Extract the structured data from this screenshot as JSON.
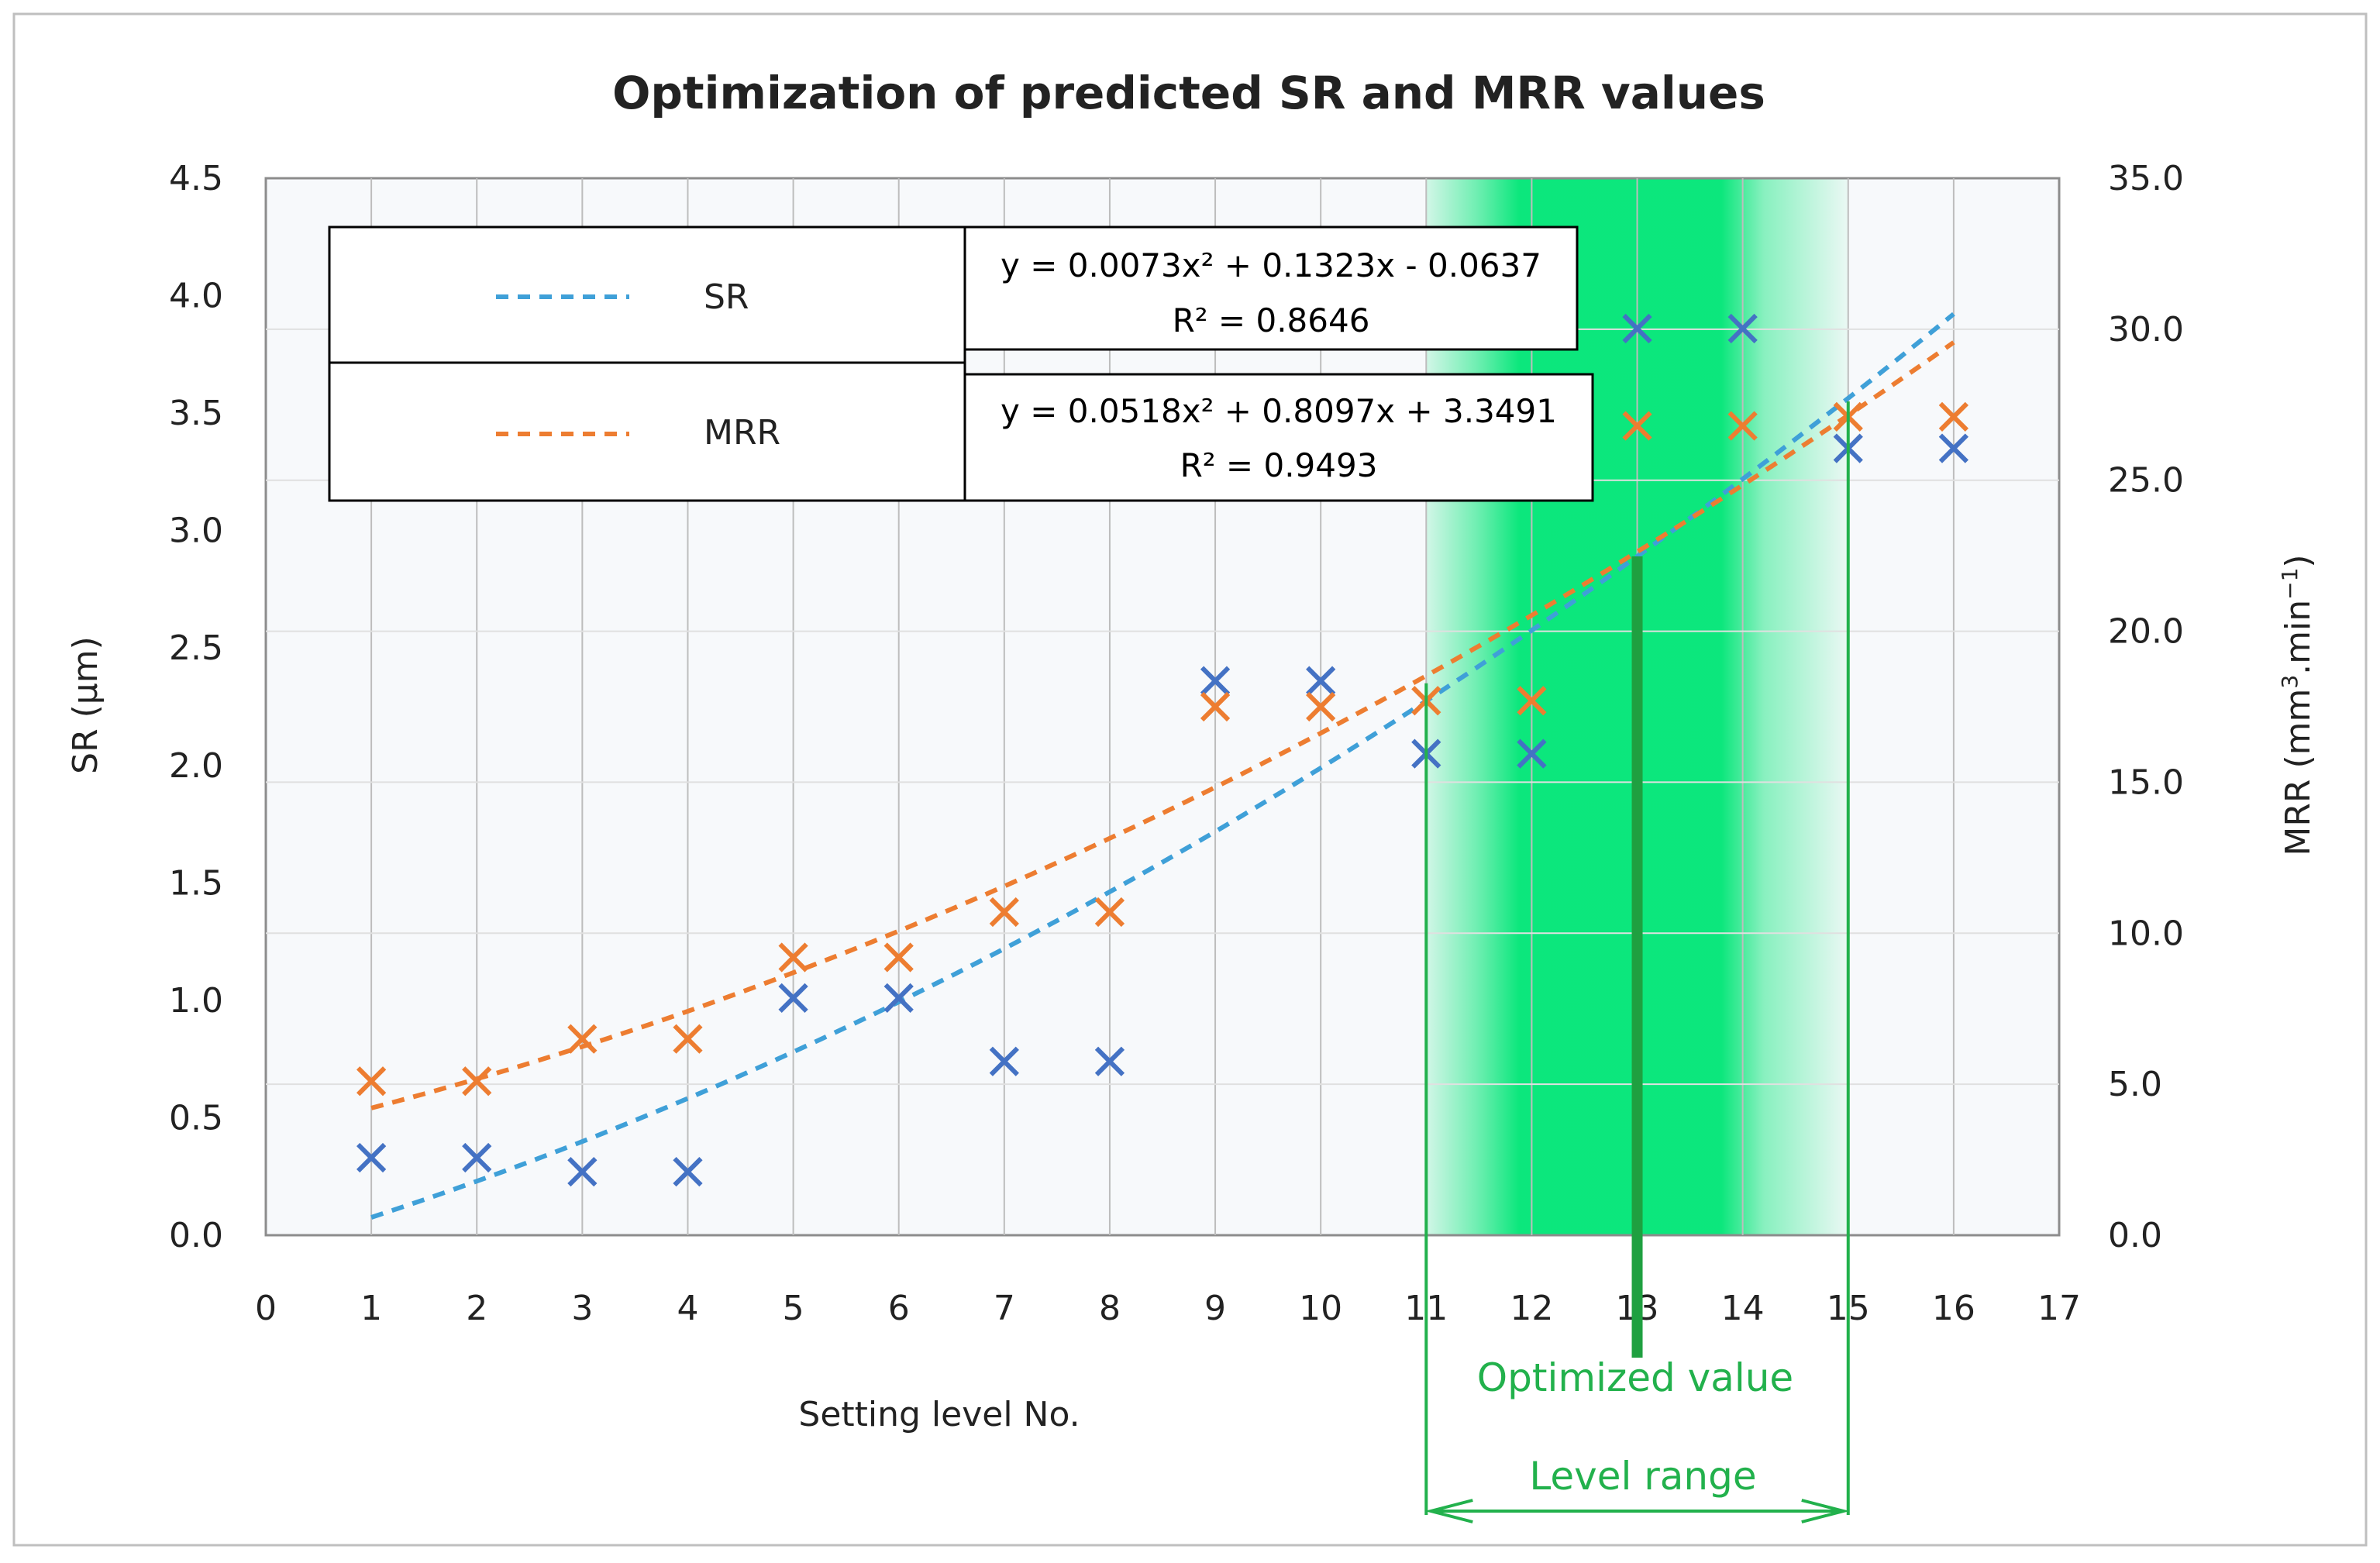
{
  "chart_data": {
    "type": "scatter",
    "title": "Optimization of predicted SR and MRR values",
    "xlabel": "Setting level No.",
    "ylabel_left": "SR (µm)",
    "ylabel_right_base": "MRR (mm",
    "ylabel_right_sup1": "3",
    "ylabel_right_mid": ".min",
    "ylabel_right_sup2": "−1",
    "ylabel_right_end": ")",
    "xlim": [
      0,
      17
    ],
    "ylim_left": [
      0,
      4.5
    ],
    "ylim_right": [
      0,
      35
    ],
    "x_ticks": [
      "0",
      "1",
      "2",
      "3",
      "4",
      "5",
      "6",
      "7",
      "8",
      "9",
      "10",
      "11",
      "12",
      "13",
      "14",
      "15",
      "16",
      "17"
    ],
    "y_left_ticks": [
      "0.0",
      "0.5",
      "1.0",
      "1.5",
      "2.0",
      "2.5",
      "3.0",
      "3.5",
      "4.0",
      "4.5"
    ],
    "y_right_ticks": [
      "0.0",
      "5.0",
      "10.0",
      "15.0",
      "20.0",
      "25.0",
      "30.0",
      "35.0"
    ],
    "series": [
      {
        "name": "SR",
        "axis": "left",
        "color": "#4472C4",
        "trend_color": "#3FA0D8",
        "x": [
          1,
          2,
          3,
          4,
          5,
          6,
          7,
          8,
          9,
          10,
          11,
          12,
          13,
          14,
          15,
          16
        ],
        "values": [
          0.33,
          0.33,
          0.27,
          0.27,
          1.01,
          1.01,
          0.74,
          0.74,
          2.36,
          2.36,
          2.05,
          2.05,
          3.86,
          3.86,
          3.35,
          3.35
        ],
        "trend": {
          "a": 0.0073,
          "b": 0.1323,
          "c": -0.0637
        },
        "equation": "y = 0.0073x² + 0.1323x - 0.0637",
        "r2": "R² = 0.8646"
      },
      {
        "name": "MRR",
        "axis": "right",
        "color": "#ED7D31",
        "trend_color": "#ED7D31",
        "x": [
          1,
          2,
          3,
          4,
          5,
          6,
          7,
          8,
          9,
          10,
          11,
          12,
          13,
          14,
          15,
          16
        ],
        "values": [
          5.1,
          5.1,
          6.5,
          6.5,
          9.2,
          9.2,
          10.7,
          10.7,
          17.5,
          17.5,
          17.7,
          17.7,
          26.8,
          26.8,
          27.1,
          27.1
        ],
        "trend": {
          "a": 0.0518,
          "b": 0.8097,
          "c": 3.3491
        },
        "equation": "y = 0.0518x² + 0.8097x + 3.3491",
        "r2": "R² = 0.9493"
      }
    ],
    "annotations": {
      "optimized_label": "Optimized value",
      "optimized_x": 13,
      "range_label": "Level range",
      "range": [
        11,
        15
      ],
      "band_color": "#00E676",
      "annotation_color": "#22B14C"
    }
  }
}
